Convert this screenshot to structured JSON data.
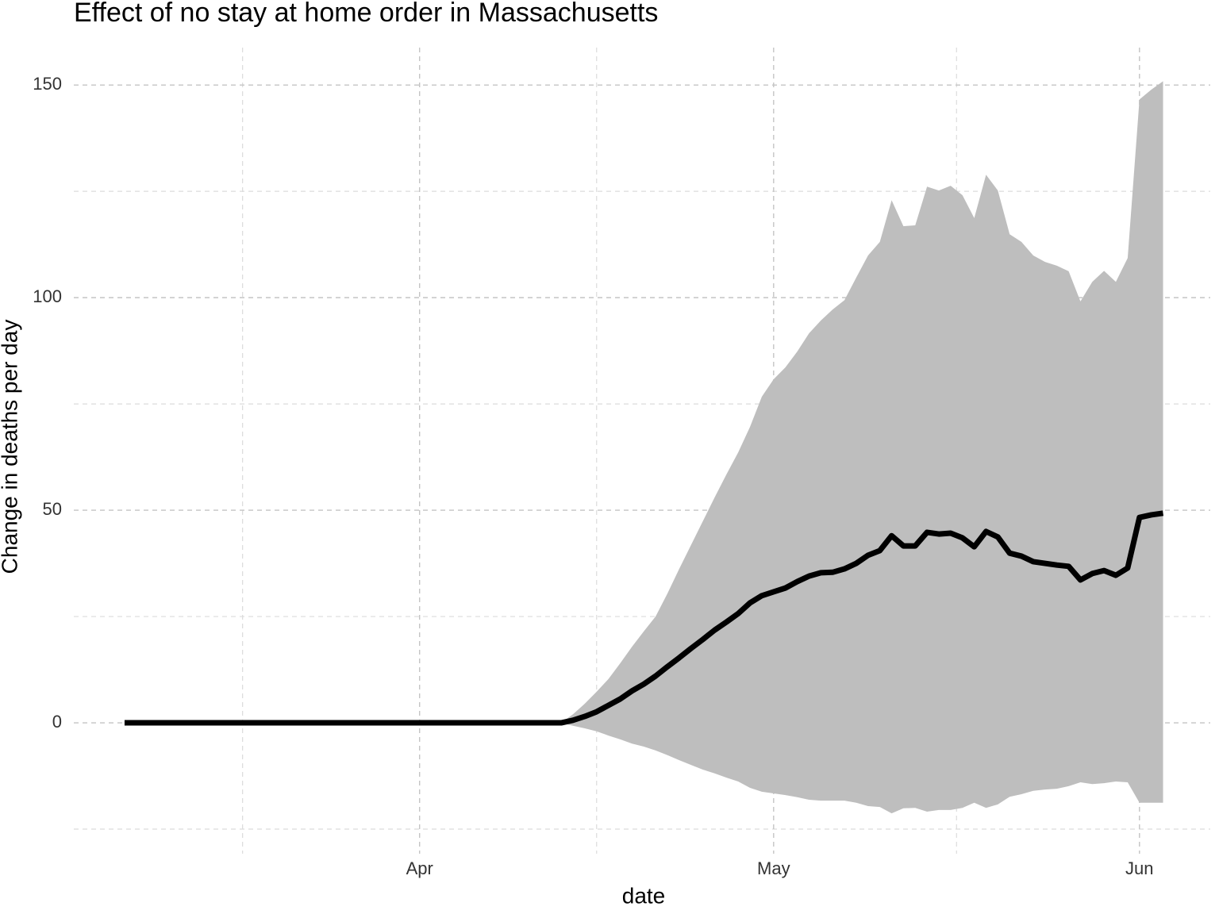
{
  "chart_data": {
    "type": "line",
    "title": "Effect of no stay at home order in Massachusetts",
    "xlabel": "date",
    "ylabel": "Change in deaths per day",
    "x": [
      6,
      7,
      8,
      9,
      10,
      11,
      12,
      13,
      14,
      15,
      16,
      17,
      18,
      19,
      20,
      21,
      22,
      23,
      24,
      25,
      26,
      27,
      28,
      29,
      30,
      31,
      32,
      33,
      34,
      35,
      36,
      37,
      38,
      39,
      40,
      41,
      42,
      43,
      44,
      45,
      46,
      47,
      48,
      49,
      50,
      51,
      52,
      53,
      54,
      55,
      56,
      57,
      58,
      59,
      60,
      61,
      62,
      63,
      64,
      65,
      66,
      67,
      68,
      69,
      70,
      71,
      72,
      73,
      74,
      75,
      76,
      77,
      78,
      79,
      80,
      81,
      82,
      83,
      84,
      85,
      86,
      87,
      88,
      89,
      90,
      91,
      92,
      93,
      94
    ],
    "values": [
      0,
      0,
      0,
      0,
      0,
      0,
      0,
      0,
      0,
      0,
      0,
      0,
      0,
      0,
      0,
      0,
      0,
      0,
      0,
      0,
      0,
      0,
      0,
      0,
      0,
      0,
      0,
      0,
      0,
      0,
      0,
      0,
      0,
      0,
      0,
      0,
      0,
      0,
      0.6,
      1.5,
      2.6,
      4.1,
      5.6,
      7.5,
      9.1,
      11,
      13.2,
      15.3,
      17.5,
      19.6,
      21.8,
      23.7,
      25.7,
      28.2,
      29.9,
      30.8,
      31.7,
      33.2,
      34.5,
      35.3,
      35.4,
      36.2,
      37.5,
      39.4,
      40.5,
      44,
      41.6,
      41.6,
      44.8,
      44.4,
      44.6,
      43.5,
      41.4,
      45,
      43.7,
      39.9,
      39.2,
      37.9,
      37.5,
      37.1,
      36.8,
      33.6,
      35.1,
      35.8,
      34.7,
      36.4,
      48.3,
      48.9,
      49.3
    ],
    "band": {
      "lower": [
        0,
        0,
        0,
        0,
        0,
        0,
        0,
        0,
        0,
        0,
        0,
        0,
        0,
        0,
        0,
        0,
        0,
        0,
        0,
        0,
        0,
        0,
        0,
        0,
        0,
        0,
        0,
        0,
        0,
        0,
        0,
        0,
        0,
        0,
        0,
        0,
        0,
        0,
        -0.7,
        -1.3,
        -2,
        -3,
        -3.9,
        -4.9,
        -5.6,
        -6.5,
        -7.6,
        -8.8,
        -9.9,
        -11,
        -11.9,
        -12.9,
        -13.8,
        -15.3,
        -16.2,
        -16.6,
        -17,
        -17.5,
        -18.1,
        -18.3,
        -18.3,
        -18.3,
        -18.8,
        -19.6,
        -19.8,
        -21.3,
        -20.1,
        -20,
        -20.9,
        -20.5,
        -20.5,
        -20,
        -18.8,
        -20,
        -19.2,
        -17.4,
        -16.8,
        -16,
        -15.7,
        -15.5,
        -14.9,
        -14,
        -14.4,
        -14.2,
        -13.8,
        -14,
        -18.8,
        -18.8,
        -18.8
      ],
      "upper": [
        0,
        0,
        0,
        0,
        0,
        0,
        0,
        0,
        0,
        0,
        0,
        0,
        0,
        0,
        0,
        0,
        0,
        0,
        0,
        0,
        0,
        0,
        0,
        0,
        0,
        0,
        0,
        0,
        0,
        0,
        0,
        0,
        0,
        0,
        0,
        0,
        0,
        0,
        2,
        4.5,
        7.3,
        10.3,
        14,
        17.9,
        21.5,
        25,
        30.4,
        36.2,
        41.8,
        47.4,
        53,
        58.4,
        63.6,
        69.6,
        76.7,
        80.8,
        83.6,
        87.3,
        91.6,
        94.6,
        97.2,
        99.4,
        104.7,
        109.9,
        113.1,
        122.9,
        116.8,
        117,
        126.1,
        125.2,
        126.3,
        124.1,
        118.7,
        128.9,
        125.2,
        114.9,
        113.1,
        109.9,
        108.4,
        107.5,
        106.2,
        99.1,
        103.7,
        106.3,
        103.7,
        109.3,
        146.6,
        148.9,
        150.9
      ]
    },
    "color": "#000000",
    "band_color": "#bebebe",
    "xlim": [
      1.7,
      98
    ],
    "ylim": [
      -27.8,
      158.8
    ],
    "xticks": [
      {
        "value": 31,
        "label": "Apr"
      },
      {
        "value": 61,
        "label": "May"
      },
      {
        "value": 92,
        "label": "Jun"
      }
    ],
    "x_minor_ticks": [
      16,
      46,
      76.5
    ],
    "yticks": [
      0,
      50,
      100,
      150
    ],
    "y_minor_ticks": [
      -25,
      25,
      75,
      125
    ],
    "grid": true
  }
}
